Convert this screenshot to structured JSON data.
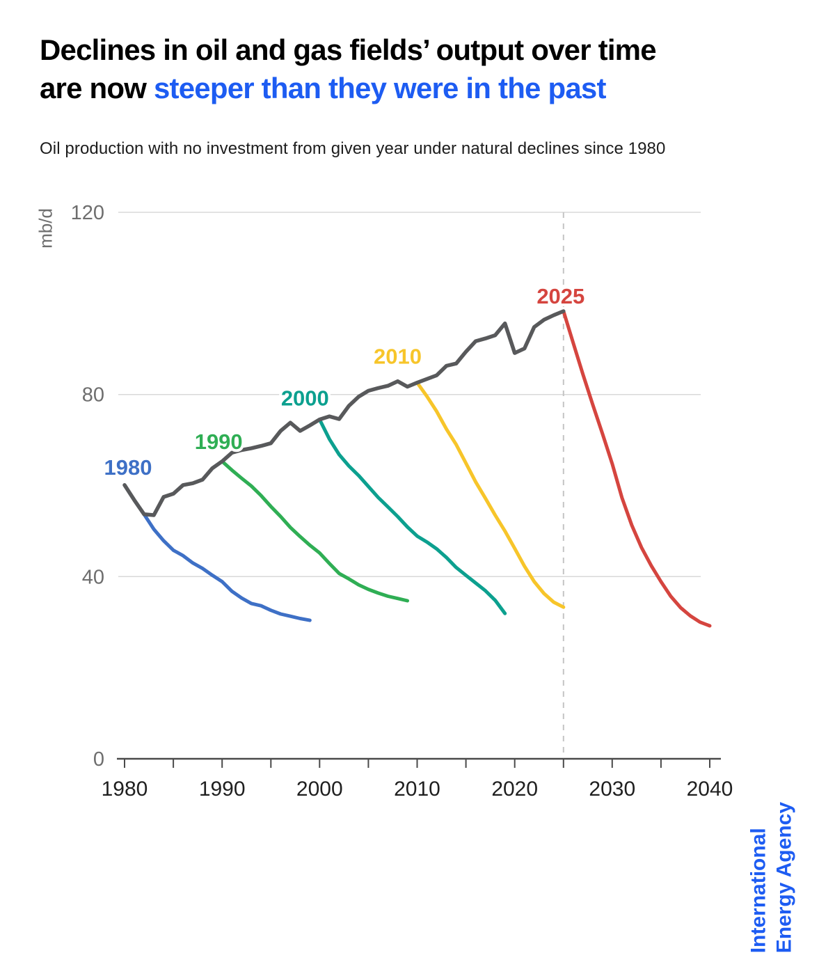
{
  "header": {
    "title_line1": "Declines in oil and gas fields’ output over time",
    "title_line2_black": "are now ",
    "title_line2_accent": "steeper than they were in the past",
    "subtitle": "Oil production with no investment from given year under natural declines since 1980",
    "accent_color": "#1d5cf2"
  },
  "branding": {
    "line1": "International",
    "line2": "Energy Agency",
    "color": "#1d5cf2"
  },
  "chart_data": {
    "type": "line",
    "unit_label": "mb/d",
    "ylabel": "mb/d",
    "y_axis": {
      "ticks": [
        0,
        40,
        80,
        120
      ],
      "gridlines": [
        40,
        80,
        120
      ],
      "range": [
        0,
        120
      ]
    },
    "x_axis": {
      "tick_years": [
        1980,
        1985,
        1990,
        1995,
        2000,
        2005,
        2010,
        2015,
        2020,
        2025,
        2030,
        2035,
        2040
      ],
      "labeled_years": [
        1980,
        1990,
        2000,
        2010,
        2020,
        2030,
        2040
      ],
      "range": [
        1980,
        2040
      ]
    },
    "reference_line": {
      "year": 2025,
      "style": "dashed"
    },
    "series": [
      {
        "id": "d1980",
        "label": "1980",
        "color": "#3e70c6",
        "role": "decline-from-1980",
        "points": [
          [
            1980,
            60.1
          ],
          [
            1981,
            56.8
          ],
          [
            1982,
            53.7
          ],
          [
            1983,
            50.4
          ],
          [
            1984,
            47.9
          ],
          [
            1985,
            45.8
          ],
          [
            1986,
            44.6
          ],
          [
            1987,
            43.0
          ],
          [
            1988,
            41.8
          ],
          [
            1989,
            40.3
          ],
          [
            1990,
            38.9
          ],
          [
            1991,
            36.8
          ],
          [
            1992,
            35.3
          ],
          [
            1993,
            34.1
          ],
          [
            1994,
            33.6
          ],
          [
            1995,
            32.6
          ],
          [
            1996,
            31.8
          ],
          [
            1997,
            31.3
          ],
          [
            1998,
            30.8
          ],
          [
            1999,
            30.4
          ]
        ]
      },
      {
        "id": "d1990",
        "label": "1990",
        "color": "#2fae54",
        "role": "decline-from-1990",
        "points": [
          [
            1990,
            65.3
          ],
          [
            1991,
            63.4
          ],
          [
            1992,
            61.6
          ],
          [
            1993,
            59.9
          ],
          [
            1994,
            57.8
          ],
          [
            1995,
            55.4
          ],
          [
            1996,
            53.2
          ],
          [
            1997,
            50.8
          ],
          [
            1998,
            48.8
          ],
          [
            1999,
            46.9
          ],
          [
            2000,
            45.2
          ],
          [
            2001,
            42.9
          ],
          [
            2002,
            40.7
          ],
          [
            2003,
            39.5
          ],
          [
            2004,
            38.2
          ],
          [
            2005,
            37.2
          ],
          [
            2006,
            36.4
          ],
          [
            2007,
            35.7
          ],
          [
            2008,
            35.2
          ],
          [
            2009,
            34.7
          ]
        ]
      },
      {
        "id": "d2000",
        "label": "2000",
        "color": "#0ca08f",
        "role": "decline-from-2000",
        "points": [
          [
            2000,
            74.5
          ],
          [
            2001,
            70.2
          ],
          [
            2002,
            66.8
          ],
          [
            2003,
            64.3
          ],
          [
            2004,
            62.2
          ],
          [
            2005,
            59.8
          ],
          [
            2006,
            57.4
          ],
          [
            2007,
            55.3
          ],
          [
            2008,
            53.2
          ],
          [
            2009,
            50.9
          ],
          [
            2010,
            48.9
          ],
          [
            2011,
            47.6
          ],
          [
            2012,
            46.1
          ],
          [
            2013,
            44.2
          ],
          [
            2014,
            42.0
          ],
          [
            2015,
            40.3
          ],
          [
            2016,
            38.6
          ],
          [
            2017,
            36.9
          ],
          [
            2018,
            34.8
          ],
          [
            2019,
            31.9
          ]
        ]
      },
      {
        "id": "d2010",
        "label": "2010",
        "color": "#f7c52a",
        "role": "decline-from-2010",
        "points": [
          [
            2010,
            82.6
          ],
          [
            2011,
            79.6
          ],
          [
            2012,
            76.3
          ],
          [
            2013,
            72.4
          ],
          [
            2014,
            69.0
          ],
          [
            2015,
            64.9
          ],
          [
            2016,
            60.8
          ],
          [
            2017,
            57.2
          ],
          [
            2018,
            53.5
          ],
          [
            2019,
            50.0
          ],
          [
            2020,
            46.2
          ],
          [
            2021,
            42.3
          ],
          [
            2022,
            38.9
          ],
          [
            2023,
            36.3
          ],
          [
            2024,
            34.4
          ],
          [
            2025,
            33.3
          ]
        ]
      },
      {
        "id": "d2025",
        "label": "2025",
        "color": "#d5453f",
        "role": "decline-from-2025",
        "points": [
          [
            2025,
            98.3
          ],
          [
            2026,
            91.3
          ],
          [
            2027,
            84.4
          ],
          [
            2028,
            77.8
          ],
          [
            2029,
            71.4
          ],
          [
            2030,
            64.8
          ],
          [
            2031,
            57.3
          ],
          [
            2032,
            51.3
          ],
          [
            2033,
            46.4
          ],
          [
            2034,
            42.4
          ],
          [
            2035,
            38.9
          ],
          [
            2036,
            35.7
          ],
          [
            2037,
            33.2
          ],
          [
            2038,
            31.4
          ],
          [
            2039,
            30.0
          ],
          [
            2040,
            29.2
          ]
        ]
      },
      {
        "id": "historical",
        "label": "",
        "color": "#58595b",
        "role": "historical-production",
        "points": [
          [
            1980,
            60.1
          ],
          [
            1981,
            56.8
          ],
          [
            1982,
            53.7
          ],
          [
            1983,
            53.5
          ],
          [
            1984,
            57.5
          ],
          [
            1985,
            58.2
          ],
          [
            1986,
            60.1
          ],
          [
            1987,
            60.5
          ],
          [
            1988,
            61.3
          ],
          [
            1989,
            63.8
          ],
          [
            1990,
            65.3
          ],
          [
            1991,
            67.2
          ],
          [
            1992,
            67.8
          ],
          [
            1993,
            68.2
          ],
          [
            1994,
            68.7
          ],
          [
            1995,
            69.3
          ],
          [
            1996,
            72.0
          ],
          [
            1997,
            73.8
          ],
          [
            1998,
            72.0
          ],
          [
            1999,
            73.2
          ],
          [
            2000,
            74.5
          ],
          [
            2001,
            75.2
          ],
          [
            2002,
            74.6
          ],
          [
            2003,
            77.5
          ],
          [
            2004,
            79.5
          ],
          [
            2005,
            80.8
          ],
          [
            2006,
            81.4
          ],
          [
            2007,
            81.9
          ],
          [
            2008,
            82.9
          ],
          [
            2009,
            81.7
          ],
          [
            2010,
            82.6
          ],
          [
            2011,
            83.4
          ],
          [
            2012,
            84.2
          ],
          [
            2013,
            86.3
          ],
          [
            2014,
            86.8
          ],
          [
            2015,
            89.4
          ],
          [
            2016,
            91.7
          ],
          [
            2017,
            92.3
          ],
          [
            2018,
            93.0
          ],
          [
            2019,
            95.6
          ],
          [
            2020,
            89.1
          ],
          [
            2021,
            90.1
          ],
          [
            2022,
            94.8
          ],
          [
            2023,
            96.4
          ],
          [
            2024,
            97.4
          ],
          [
            2025,
            98.3
          ]
        ]
      }
    ]
  }
}
